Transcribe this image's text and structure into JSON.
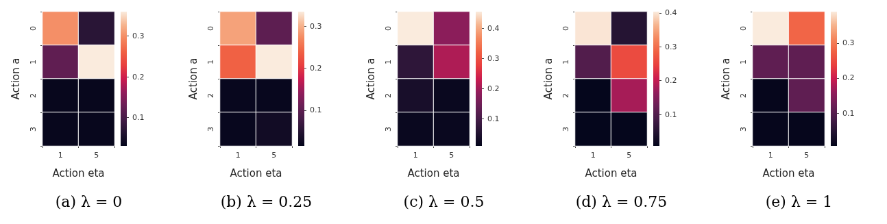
{
  "chart_data": [
    {
      "type": "heatmap",
      "title": "(a) λ = 0",
      "xlabel": "Action eta",
      "ylabel": "Action a",
      "categories": [
        "1",
        "5"
      ],
      "y_categories": [
        "0",
        "1",
        "2",
        "3"
      ],
      "cells": [
        [
          0.3,
          0.07
        ],
        [
          0.12,
          0.36
        ],
        [
          0.035,
          0.035
        ],
        [
          0.035,
          0.035
        ]
      ],
      "clim": [
        0.03,
        0.36
      ],
      "cticks": [
        0.1,
        0.2,
        0.3
      ]
    },
    {
      "type": "heatmap",
      "title": "(b) λ = 0.25",
      "xlabel": "Action eta",
      "ylabel": "Action a",
      "categories": [
        "1",
        "5"
      ],
      "y_categories": [
        "0",
        "1",
        "2",
        "3"
      ],
      "cells": [
        [
          0.29,
          0.1
        ],
        [
          0.24,
          0.335
        ],
        [
          0.02,
          0.02
        ],
        [
          0.02,
          0.03
        ]
      ],
      "clim": [
        0.015,
        0.335
      ],
      "cticks": [
        0.1,
        0.2,
        0.3
      ]
    },
    {
      "type": "heatmap",
      "title": "(c) λ = 0.5",
      "xlabel": "Action eta",
      "ylabel": "Action a",
      "categories": [
        "1",
        "5"
      ],
      "y_categories": [
        "0",
        "1",
        "2",
        "3"
      ],
      "cells": [
        [
          0.455,
          0.18
        ],
        [
          0.07,
          0.21
        ],
        [
          0.04,
          0.02
        ],
        [
          0.02,
          0.02
        ]
      ],
      "clim": [
        0.01,
        0.455
      ],
      "cticks": [
        0.1,
        0.2,
        0.3,
        0.4
      ]
    },
    {
      "type": "heatmap",
      "title": "(d) λ = 0.75",
      "xlabel": "Action eta",
      "ylabel": "Action a",
      "categories": [
        "1",
        "5"
      ],
      "y_categories": [
        "0",
        "1",
        "2",
        "3"
      ],
      "cells": [
        [
          0.4,
          0.05
        ],
        [
          0.1,
          0.26
        ],
        [
          0.01,
          0.18
        ],
        [
          0.01,
          0.01
        ]
      ],
      "clim": [
        0.007,
        0.404
      ],
      "cticks": [
        0.1,
        0.2,
        0.3,
        0.4
      ]
    },
    {
      "type": "heatmap",
      "title": "(e) λ = 1",
      "xlabel": "Action eta",
      "ylabel": "Action a",
      "categories": [
        "1",
        "5"
      ],
      "y_categories": [
        "0",
        "1",
        "2",
        "3"
      ],
      "cells": [
        [
          0.39,
          0.28
        ],
        [
          0.11,
          0.11
        ],
        [
          0.01,
          0.11
        ],
        [
          0.01,
          0.01
        ]
      ],
      "clim": [
        0.006,
        0.39
      ],
      "cticks": [
        0.1,
        0.2,
        0.3
      ]
    }
  ]
}
